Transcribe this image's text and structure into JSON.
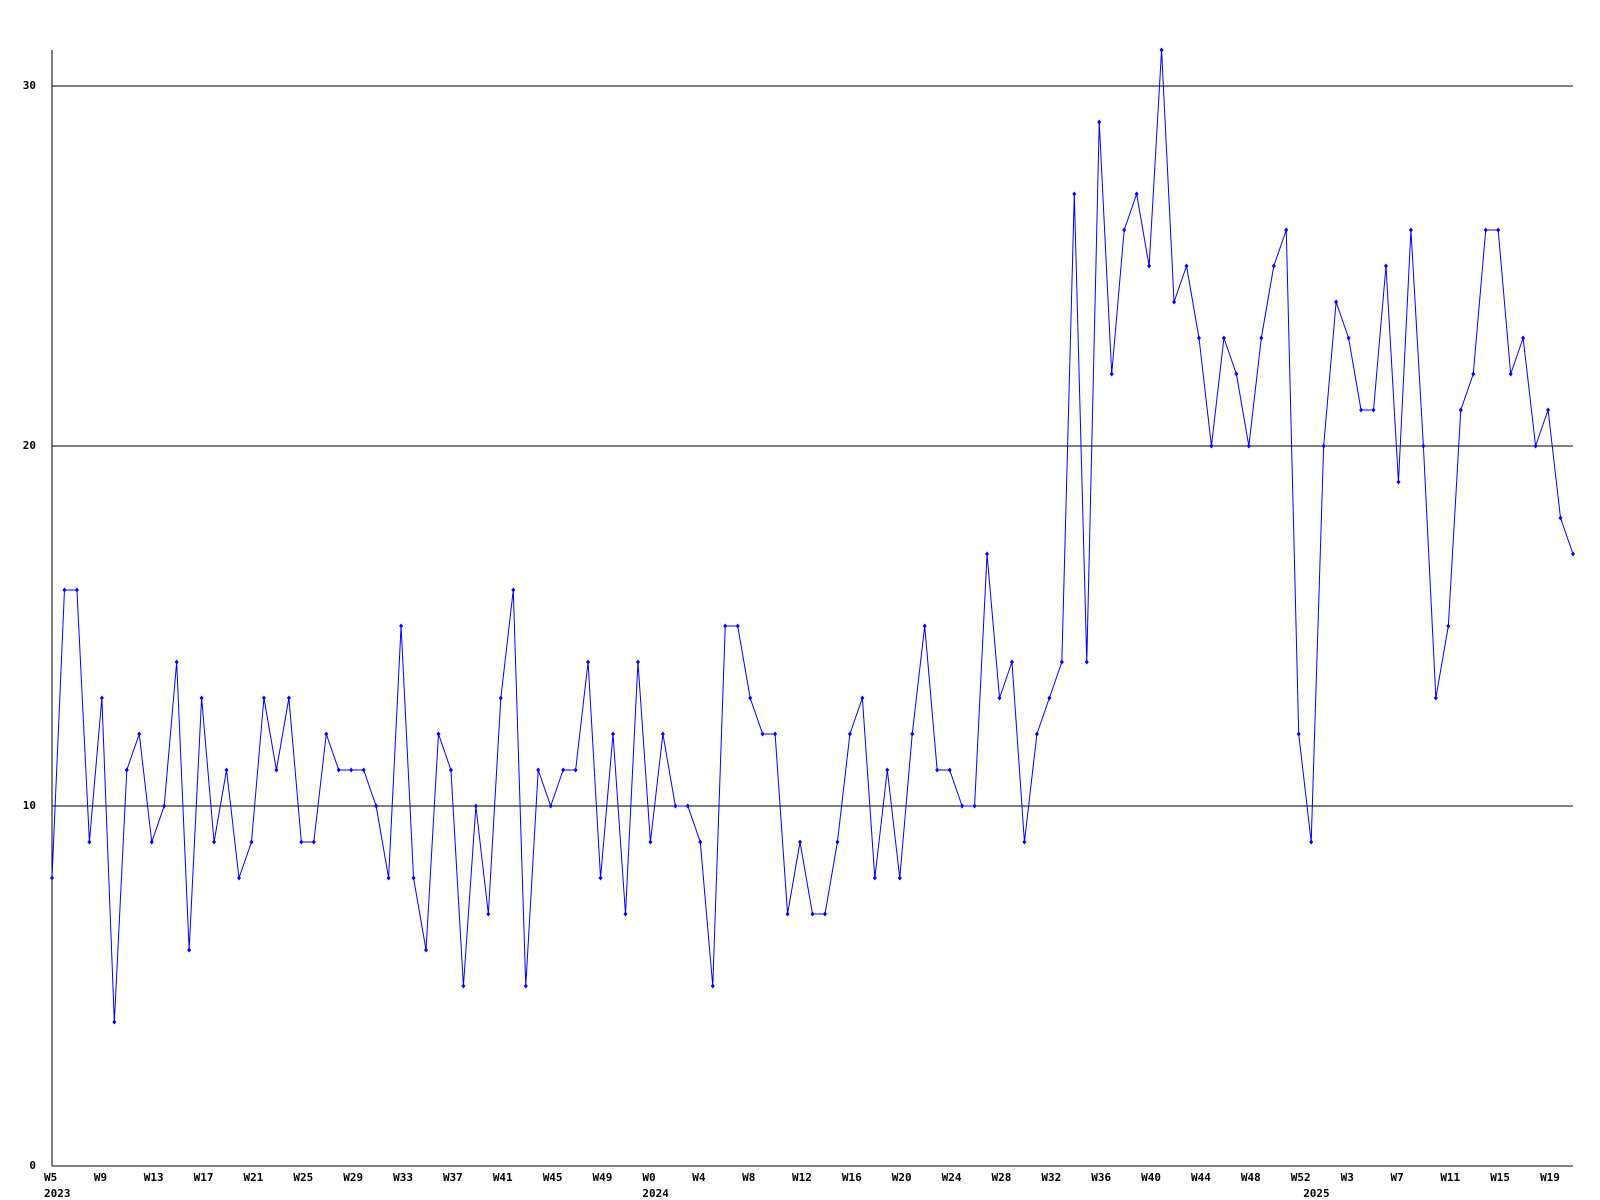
{
  "chart_data": {
    "type": "line",
    "categories": [
      "W5",
      null,
      null,
      null,
      "W9",
      null,
      null,
      null,
      "W13",
      null,
      null,
      null,
      "W17",
      null,
      null,
      null,
      "W21",
      null,
      null,
      null,
      "W25",
      null,
      null,
      null,
      "W29",
      null,
      null,
      null,
      "W33",
      null,
      null,
      null,
      "W37",
      null,
      null,
      null,
      "W41",
      null,
      null,
      null,
      "W45",
      null,
      null,
      null,
      "W49",
      null,
      null,
      null,
      "W0",
      null,
      null,
      null,
      "W4",
      null,
      null,
      null,
      "W8",
      null,
      null,
      null,
      "W12",
      null,
      null,
      null,
      "W16",
      null,
      null,
      null,
      "W20",
      null,
      null,
      null,
      "W24",
      null,
      null,
      null,
      "W28",
      null,
      null,
      null,
      "W32",
      null,
      null,
      null,
      "W36",
      null,
      null,
      null,
      "W40",
      null,
      null,
      null,
      "W44",
      null,
      null,
      null,
      "W48",
      null,
      null,
      null,
      "W52",
      null,
      null,
      null,
      "W3",
      null,
      null,
      null,
      "W7",
      null,
      null,
      null,
      "W11",
      null,
      null,
      null,
      "W15",
      null,
      null,
      null,
      "W19",
      null,
      null
    ],
    "years": [
      "2023",
      null,
      null,
      null,
      null,
      null,
      null,
      null,
      null,
      null,
      null,
      null,
      null,
      null,
      null,
      null,
      null,
      null,
      null,
      null,
      null,
      null,
      null,
      null,
      null,
      null,
      null,
      null,
      null,
      null,
      null,
      null,
      null,
      null,
      null,
      null,
      null,
      null,
      null,
      null,
      null,
      null,
      null,
      null,
      null,
      null,
      null,
      null,
      "2024",
      null,
      null,
      null,
      null,
      null,
      null,
      null,
      null,
      null,
      null,
      null,
      null,
      null,
      null,
      null,
      null,
      null,
      null,
      null,
      null,
      null,
      null,
      null,
      null,
      null,
      null,
      null,
      null,
      null,
      null,
      null,
      null,
      null,
      null,
      null,
      null,
      null,
      null,
      null,
      null,
      null,
      null,
      null,
      null,
      null,
      null,
      null,
      null,
      null,
      null,
      null,
      null,
      "2025",
      null,
      null,
      null,
      null,
      null,
      null,
      null,
      null,
      null,
      null,
      null,
      null,
      null,
      null,
      null,
      null,
      null,
      null,
      null,
      null,
      null
    ],
    "series": [
      {
        "color": "#0000ff",
        "values": [
          8,
          16,
          16,
          9,
          13,
          4,
          11,
          12,
          9,
          10,
          14,
          6,
          13,
          9,
          11,
          8,
          9,
          13,
          11,
          13,
          9,
          9,
          12,
          11,
          11,
          11,
          10,
          8,
          15,
          8,
          6,
          12,
          11,
          5,
          10,
          7,
          13,
          16,
          5,
          11,
          10,
          11,
          11,
          14,
          8,
          12,
          7,
          14,
          9,
          12,
          10,
          10,
          9,
          5,
          15,
          15,
          13,
          12,
          12,
          7,
          9,
          7,
          7,
          9,
          12,
          13,
          8,
          11,
          8,
          12,
          15,
          11,
          11,
          10,
          10,
          17,
          13,
          14,
          9,
          12,
          13,
          14,
          27,
          14,
          29,
          22,
          26,
          27,
          25,
          31,
          24,
          25,
          23,
          20,
          23,
          22,
          20,
          23,
          25,
          26,
          12,
          9,
          20,
          24,
          23,
          21,
          21,
          25,
          19,
          26,
          20,
          13,
          15,
          21,
          22,
          26,
          26,
          22,
          23,
          20,
          21,
          18,
          17
        ]
      }
    ],
    "ylim": [
      0,
      31
    ],
    "yticks": [
      0,
      10,
      20,
      30
    ],
    "grid": true
  }
}
